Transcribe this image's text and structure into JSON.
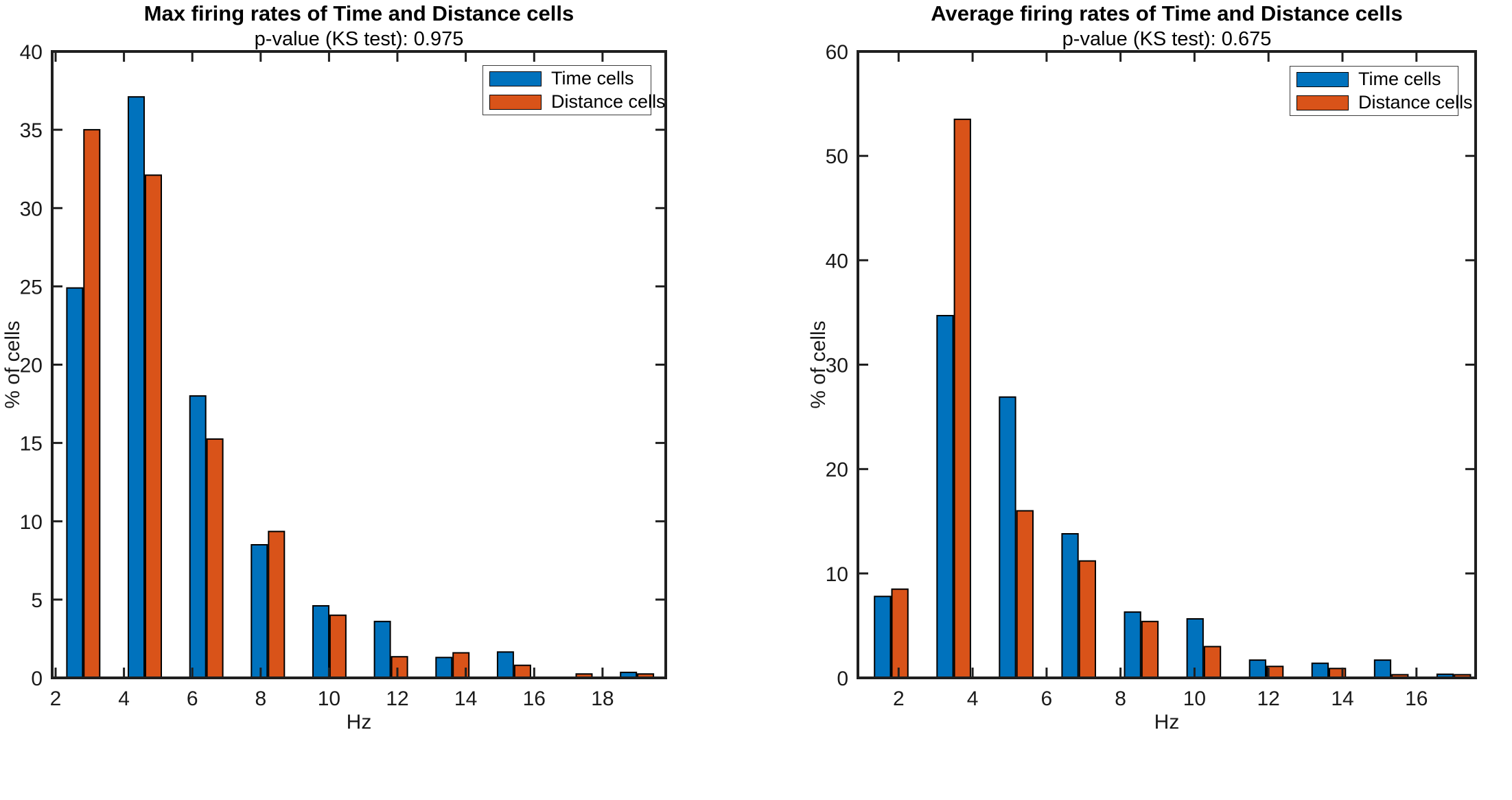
{
  "colors": {
    "time_cells": "#0072BD",
    "distance_cells": "#D95319",
    "axis": "#1f1f1f",
    "tick_text": "#1a1a1a",
    "title_text": "#000000",
    "background": "#ffffff"
  },
  "chart_data": [
    {
      "type": "bar",
      "title": "Max firing rates of Time and Distance cells",
      "subtitle": "p-value (KS test): 0.975",
      "xlabel": "Hz",
      "ylabel": "% of cells",
      "legend_position": "top-right",
      "grid": false,
      "categories": [
        2.81,
        4.61,
        6.41,
        8.21,
        10.01,
        11.81,
        13.61,
        15.41,
        17.21,
        19.01
      ],
      "series": [
        {
          "name": "Time cells",
          "color": "#0072BD",
          "values": [
            24.9,
            37.1,
            18.0,
            8.5,
            4.6,
            3.6,
            1.3,
            1.65,
            0,
            0.35
          ]
        },
        {
          "name": "Distance cells",
          "color": "#D95319",
          "values": [
            35.0,
            32.1,
            15.25,
            9.35,
            4.0,
            1.35,
            1.6,
            0.8,
            0.25,
            0.25
          ]
        }
      ],
      "xlim": [
        1.9,
        19.85
      ],
      "ylim": [
        0,
        40
      ],
      "xticks": [
        2,
        4,
        6,
        8,
        10,
        12,
        14,
        16,
        18
      ],
      "yticks": [
        0,
        5,
        10,
        15,
        20,
        25,
        30,
        35,
        40
      ]
    },
    {
      "type": "bar",
      "title": "Average firing rates of Time and Distance cells",
      "subtitle": "p-value (KS test): 0.675",
      "xlabel": "Hz",
      "ylabel": "% of cells",
      "legend_position": "top-right",
      "grid": false,
      "categories": [
        1.8,
        3.49,
        5.18,
        6.87,
        8.56,
        10.25,
        11.94,
        13.63,
        15.32,
        17.01
      ],
      "series": [
        {
          "name": "Time cells",
          "color": "#0072BD",
          "values": [
            7.8,
            34.7,
            26.9,
            13.8,
            6.3,
            5.65,
            1.7,
            1.4,
            1.7,
            0.35
          ]
        },
        {
          "name": "Distance cells",
          "color": "#D95319",
          "values": [
            8.5,
            53.5,
            16.0,
            11.2,
            5.4,
            3.0,
            1.1,
            0.9,
            0.3,
            0.3
          ]
        }
      ],
      "xlim": [
        0.9,
        17.6
      ],
      "ylim": [
        0,
        60
      ],
      "xticks": [
        2,
        4,
        6,
        8,
        10,
        12,
        14,
        16
      ],
      "yticks": [
        0,
        10,
        20,
        30,
        40,
        50,
        60
      ]
    }
  ]
}
